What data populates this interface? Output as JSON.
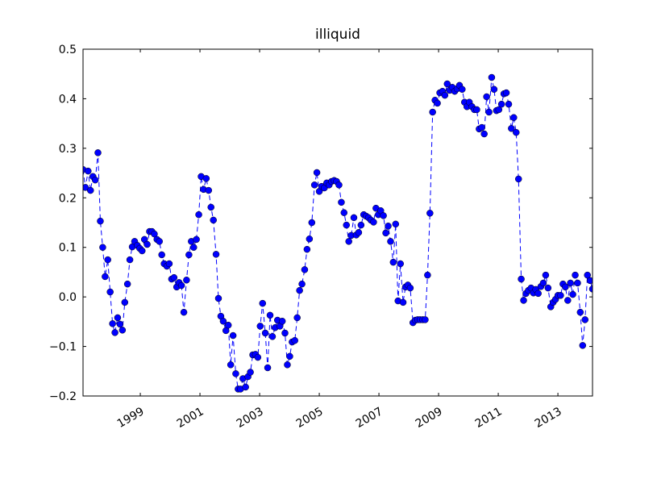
{
  "chart_data": {
    "type": "line",
    "title": "illiquid",
    "x": [
      1997.08,
      1997.16,
      1997.25,
      1997.33,
      1997.41,
      1997.49,
      1997.58,
      1997.66,
      1997.74,
      1997.82,
      1997.91,
      1997.99,
      1998.07,
      1998.15,
      1998.24,
      1998.32,
      1998.4,
      1998.48,
      1998.57,
      1998.65,
      1998.73,
      1998.81,
      1998.9,
      1998.98,
      1999.06,
      1999.14,
      1999.23,
      1999.31,
      1999.39,
      1999.47,
      1999.56,
      1999.64,
      1999.72,
      1999.8,
      1999.89,
      1999.97,
      2000.05,
      2000.13,
      2000.22,
      2000.3,
      2000.38,
      2000.46,
      2000.55,
      2000.63,
      2000.71,
      2000.79,
      2000.88,
      2000.96,
      2001.04,
      2001.12,
      2001.21,
      2001.29,
      2001.37,
      2001.45,
      2001.54,
      2001.62,
      2001.7,
      2001.78,
      2001.87,
      2001.95,
      2002.03,
      2002.11,
      2002.2,
      2002.28,
      2002.36,
      2002.44,
      2002.53,
      2002.61,
      2002.69,
      2002.77,
      2002.86,
      2002.94,
      2003.02,
      2003.1,
      2003.19,
      2003.27,
      2003.35,
      2003.43,
      2003.52,
      2003.6,
      2003.68,
      2003.76,
      2003.85,
      2003.93,
      2004.01,
      2004.09,
      2004.18,
      2004.26,
      2004.34,
      2004.42,
      2004.51,
      2004.59,
      2004.67,
      2004.75,
      2004.84,
      2004.92,
      2005.0,
      2005.08,
      2005.17,
      2005.25,
      2005.33,
      2005.41,
      2005.5,
      2005.58,
      2005.66,
      2005.74,
      2005.83,
      2005.91,
      2005.99,
      2006.07,
      2006.16,
      2006.24,
      2006.32,
      2006.4,
      2006.49,
      2006.57,
      2006.65,
      2006.73,
      2006.82,
      2006.9,
      2006.98,
      2007.06,
      2007.15,
      2007.23,
      2007.31,
      2007.39,
      2007.48,
      2007.56,
      2007.64,
      2007.72,
      2007.81,
      2007.89,
      2007.97,
      2008.05,
      2008.14,
      2008.22,
      2008.3,
      2008.38,
      2008.47,
      2008.55,
      2008.63,
      2008.71,
      2008.8,
      2008.88,
      2008.96,
      2009.04,
      2009.13,
      2009.21,
      2009.29,
      2009.37,
      2009.46,
      2009.54,
      2009.62,
      2009.7,
      2009.79,
      2009.87,
      2009.95,
      2010.03,
      2010.12,
      2010.2,
      2010.28,
      2010.36,
      2010.45,
      2010.53,
      2010.61,
      2010.69,
      2010.78,
      2010.86,
      2010.94,
      2011.02,
      2011.11,
      2011.19,
      2011.27,
      2011.35,
      2011.44,
      2011.52,
      2011.6,
      2011.68,
      2011.77,
      2011.85,
      2011.93,
      2012.01,
      2012.1,
      2012.18,
      2012.26,
      2012.34,
      2012.43,
      2012.51,
      2012.59,
      2012.67,
      2012.76,
      2012.84,
      2012.92,
      2013.0,
      2013.09,
      2013.17,
      2013.25,
      2013.33,
      2013.42,
      2013.5,
      2013.58,
      2013.66,
      2013.75,
      2013.83,
      2013.91,
      2013.99,
      2014.08,
      2014.16
    ],
    "series": [
      {
        "color": "#0000ff",
        "values": [
          0.257,
          0.221,
          0.254,
          0.215,
          0.243,
          0.236,
          0.291,
          0.153,
          0.1,
          0.041,
          0.075,
          0.01,
          -0.054,
          -0.072,
          -0.042,
          -0.055,
          -0.067,
          -0.011,
          0.026,
          0.075,
          0.101,
          0.112,
          0.104,
          0.098,
          0.093,
          0.116,
          0.106,
          0.132,
          0.132,
          0.127,
          0.116,
          0.112,
          0.085,
          0.067,
          0.062,
          0.067,
          0.036,
          0.039,
          0.02,
          0.029,
          0.023,
          -0.031,
          0.034,
          0.085,
          0.112,
          0.1,
          0.116,
          0.166,
          0.243,
          0.217,
          0.239,
          0.215,
          0.181,
          0.155,
          0.086,
          -0.003,
          -0.039,
          -0.049,
          -0.068,
          -0.057,
          -0.137,
          -0.078,
          -0.155,
          -0.186,
          -0.186,
          -0.165,
          -0.182,
          -0.161,
          -0.152,
          -0.117,
          -0.116,
          -0.122,
          -0.059,
          -0.013,
          -0.073,
          -0.143,
          -0.037,
          -0.08,
          -0.062,
          -0.047,
          -0.059,
          -0.049,
          -0.073,
          -0.137,
          -0.12,
          -0.091,
          -0.088,
          -0.042,
          0.013,
          0.026,
          0.055,
          0.096,
          0.117,
          0.15,
          0.226,
          0.251,
          0.213,
          0.223,
          0.22,
          0.23,
          0.226,
          0.233,
          0.235,
          0.233,
          0.226,
          0.191,
          0.17,
          0.145,
          0.112,
          0.124,
          0.16,
          0.125,
          0.13,
          0.145,
          0.166,
          0.163,
          0.16,
          0.155,
          0.151,
          0.179,
          0.166,
          0.174,
          0.164,
          0.129,
          0.143,
          0.112,
          0.07,
          0.147,
          -0.008,
          0.067,
          -0.011,
          0.02,
          0.024,
          0.018,
          -0.052,
          -0.047,
          -0.046,
          -0.046,
          -0.046,
          -0.046,
          0.044,
          0.169,
          0.373,
          0.397,
          0.391,
          0.412,
          0.415,
          0.407,
          0.43,
          0.417,
          0.423,
          0.415,
          0.42,
          0.427,
          0.419,
          0.393,
          0.384,
          0.393,
          0.384,
          0.378,
          0.378,
          0.339,
          0.342,
          0.329,
          0.404,
          0.373,
          0.443,
          0.419,
          0.376,
          0.378,
          0.389,
          0.41,
          0.412,
          0.389,
          0.34,
          0.362,
          0.332,
          0.238,
          0.036,
          -0.007,
          0.007,
          0.013,
          0.018,
          0.008,
          0.015,
          0.007,
          0.021,
          0.028,
          0.044,
          0.018,
          -0.02,
          -0.011,
          -0.005,
          0.003,
          0.003,
          0.026,
          0.02,
          -0.007,
          0.028,
          0.005,
          0.044,
          0.028,
          -0.031,
          -0.098,
          -0.046,
          0.044,
          0.033,
          0.016
        ]
      }
    ],
    "xlim": [
      1997.08,
      2014.16
    ],
    "xticks": [
      1999,
      2001,
      2003,
      2005,
      2007,
      2009,
      2011,
      2013
    ],
    "ylim": [
      -0.2,
      0.5
    ],
    "yticks": [
      {
        "value": -0.2,
        "label": "−0.2"
      },
      {
        "value": -0.1,
        "label": "−0.1"
      },
      {
        "value": 0,
        "label": "0.0"
      },
      0.1,
      0.2,
      0.3,
      0.4,
      0.5
    ]
  }
}
